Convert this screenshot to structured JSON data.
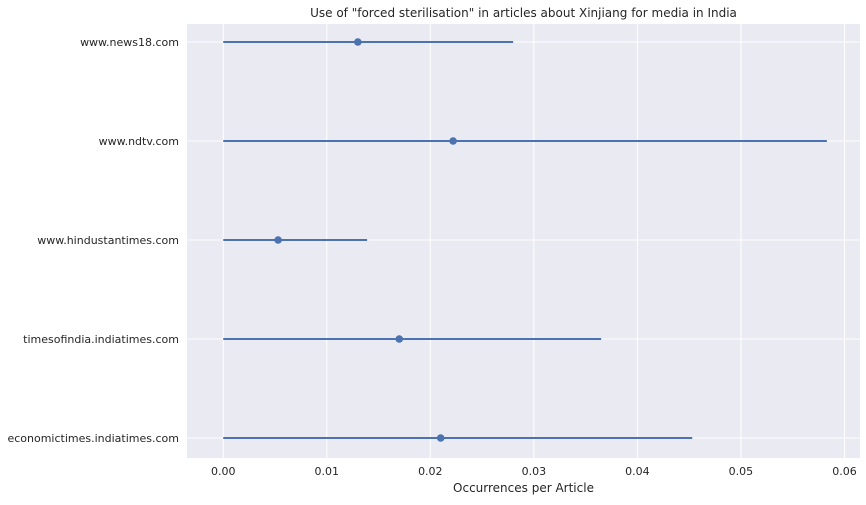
{
  "chart_data": {
    "type": "scatter",
    "subtype": "point-with-horizontal-error-bars",
    "title": "Use of \"forced sterilisation\" in articles about Xinjiang for media in India",
    "xlabel": "Occurrences per Article",
    "ylabel": "",
    "xlim": [
      -0.0035,
      0.0615
    ],
    "x_ticks": [
      0.0,
      0.01,
      0.02,
      0.03,
      0.04,
      0.05,
      0.06
    ],
    "x_tick_labels": [
      "0.00",
      "0.01",
      "0.02",
      "0.03",
      "0.04",
      "0.05",
      "0.06"
    ],
    "categories": [
      "www.news18.com",
      "www.ndtv.com",
      "www.hindustantimes.com",
      "timesofindia.indiatimes.com",
      "economictimes.indiatimes.com"
    ],
    "values": [
      0.013,
      0.0222,
      0.0053,
      0.017,
      0.021
    ],
    "error_low": [
      0.0,
      0.0,
      0.0,
      0.0,
      0.0
    ],
    "error_high": [
      0.028,
      0.0583,
      0.0139,
      0.0365,
      0.0453
    ],
    "grid": true,
    "legend": false,
    "colors": {
      "background": "#eaeaf2",
      "grid": "#ffffff",
      "series": "#4c72b0",
      "text": "#262626"
    }
  }
}
